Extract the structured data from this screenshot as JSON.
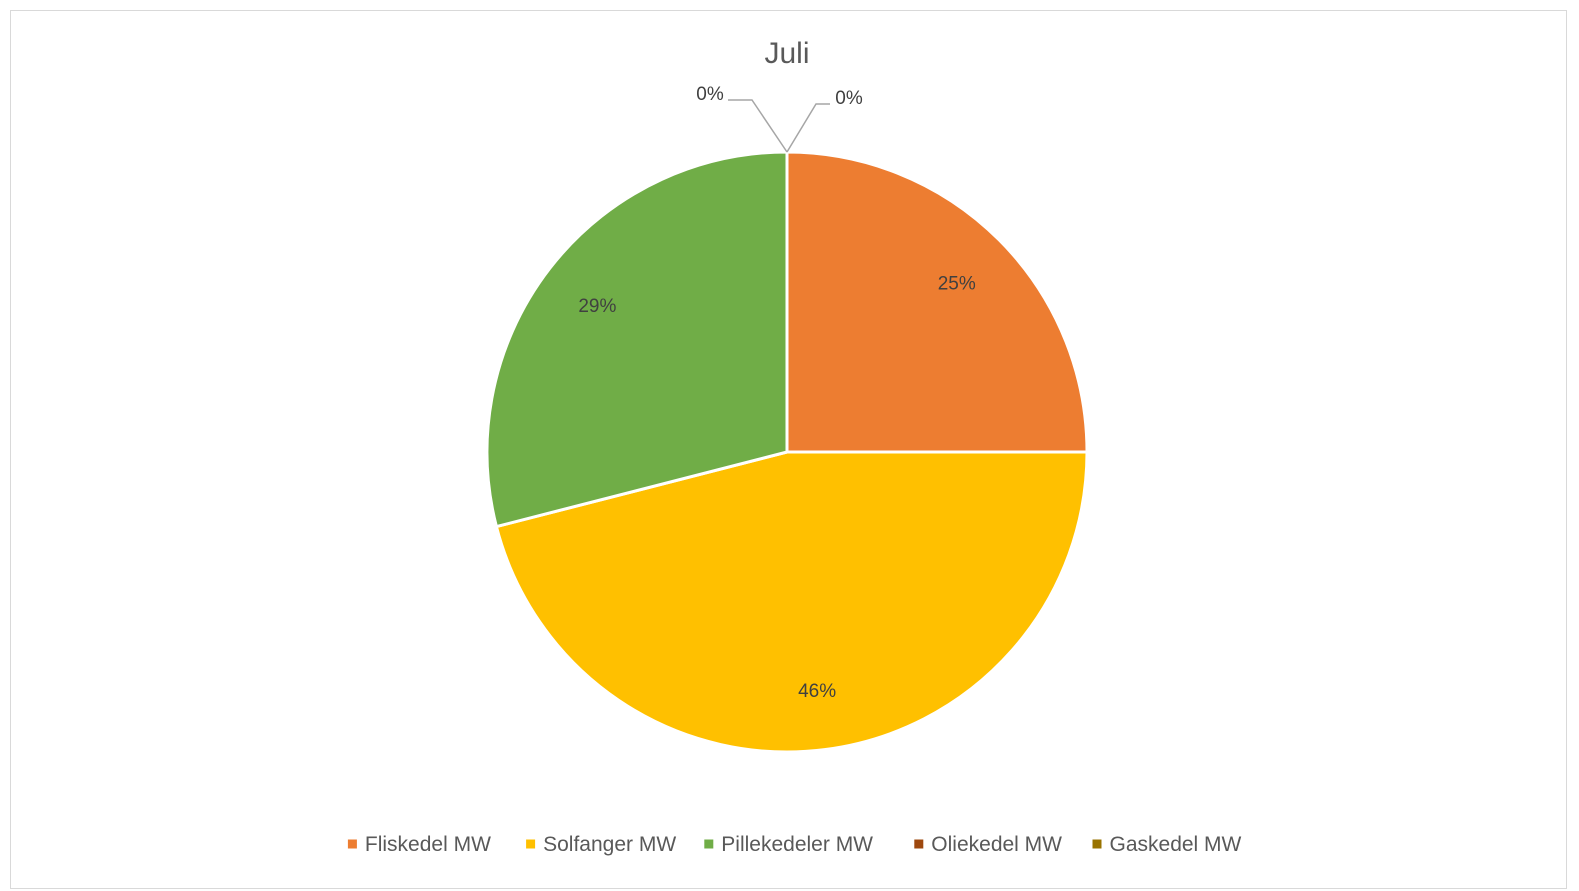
{
  "chart_data": {
    "type": "pie",
    "title": "Juli",
    "categories": [
      "Fliskedel MW",
      "Solfanger MW",
      "Pillekedeler MW",
      "Oliekedel MW",
      "Gaskedel MW"
    ],
    "values": [
      25,
      46,
      29,
      0,
      0
    ],
    "data_labels": [
      "25%",
      "46%",
      "29%",
      "0%",
      "0%"
    ],
    "colors": [
      "#ED7D31",
      "#FFC000",
      "#70AD47",
      "#9E480E",
      "#997300"
    ],
    "legend_position": "bottom",
    "start_angle_deg": 0,
    "direction": "clockwise"
  }
}
